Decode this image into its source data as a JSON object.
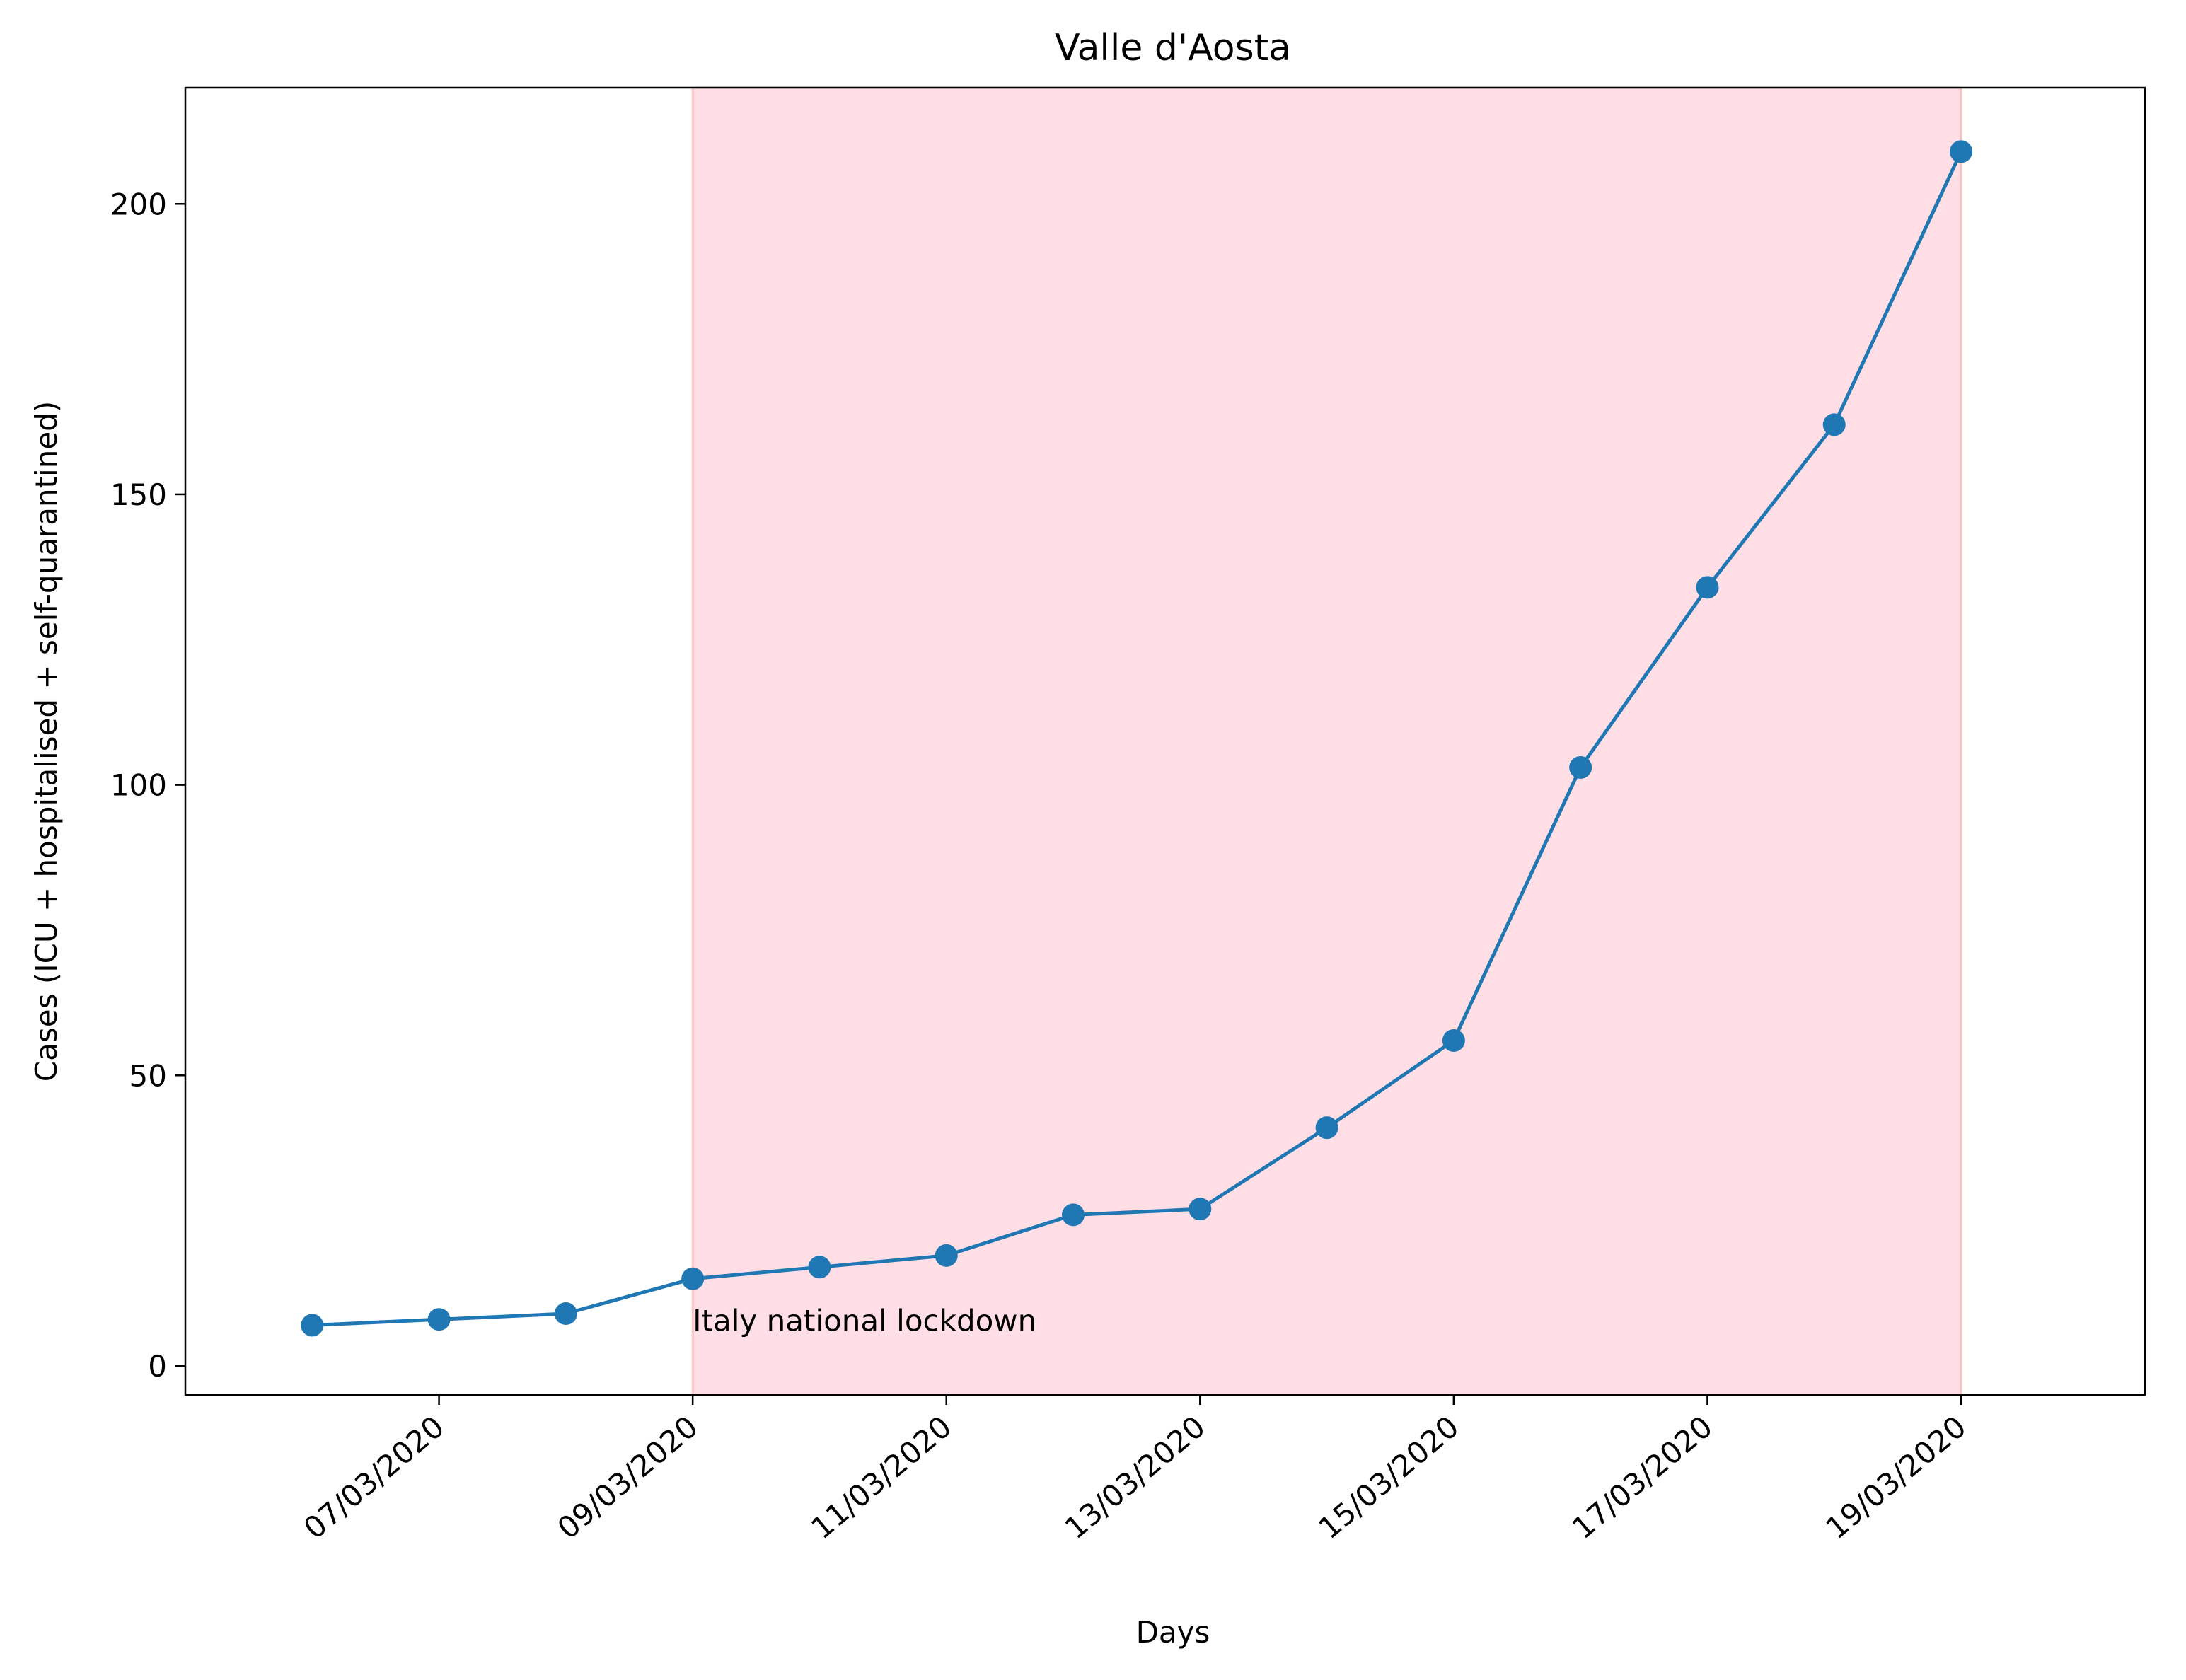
{
  "chart_data": {
    "type": "line",
    "title": "Valle d'Aosta",
    "xlabel": "Days",
    "ylabel": "Cases (ICU + hospitalised + self-quarantined)",
    "x": [
      "06/03/2020",
      "07/03/2020",
      "08/03/2020",
      "09/03/2020",
      "10/03/2020",
      "11/03/2020",
      "12/03/2020",
      "13/03/2020",
      "14/03/2020",
      "15/03/2020",
      "16/03/2020",
      "17/03/2020",
      "18/03/2020",
      "19/03/2020"
    ],
    "series": [
      {
        "name": "Cases",
        "values": [
          7,
          8,
          9,
          15,
          17,
          19,
          26,
          27,
          41,
          56,
          103,
          134,
          162,
          209
        ],
        "color": "#1f77b4"
      }
    ],
    "x_ticks": [
      "07/03/2020",
      "09/03/2020",
      "11/03/2020",
      "13/03/2020",
      "15/03/2020",
      "17/03/2020",
      "19/03/2020"
    ],
    "y_ticks": [
      0,
      50,
      100,
      150,
      200
    ],
    "ylim": [
      -5,
      220
    ],
    "xlim_days": [
      -1.0,
      14.45
    ],
    "shaded_region": {
      "from": "09/03/2020",
      "to": "19/03/2020",
      "color": "#ffc0cb"
    },
    "annotation": {
      "text": "Italy national lockdown",
      "at_date": "09/03/2020",
      "at_value": 6
    },
    "grid": false,
    "legend": "none"
  }
}
